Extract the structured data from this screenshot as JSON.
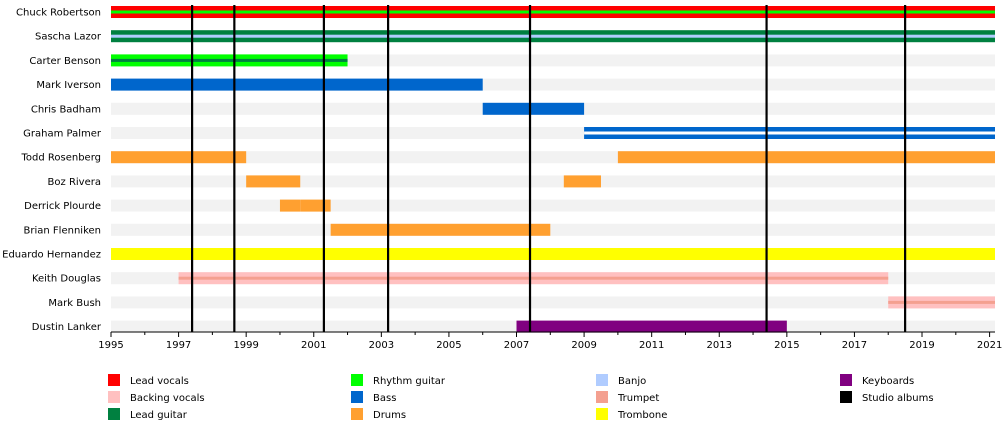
{
  "chart_data": {
    "type": "timeline",
    "title": "",
    "x_range": [
      1995,
      2021.2
    ],
    "ticks": [
      1995,
      1997,
      1999,
      2001,
      2003,
      2005,
      2007,
      2009,
      2011,
      2013,
      2015,
      2017,
      2019,
      2021
    ],
    "studio_albums": [
      1997.4,
      1998.65,
      2001.3,
      2003.2,
      2007.4,
      2014.4,
      2018.5
    ],
    "roles": {
      "lead_vocals": {
        "label": "Lead vocals",
        "color": "#ff0000"
      },
      "backing_vocals": {
        "label": "Backing vocals",
        "color": "#ffc0c0"
      },
      "lead_guitar": {
        "label": "Lead guitar",
        "color": "#008040"
      },
      "rhythm_guitar": {
        "label": "Rhythm guitar",
        "color": "#00ff00"
      },
      "bass": {
        "label": "Bass",
        "color": "#0066cc"
      },
      "drums": {
        "label": "Drums",
        "color": "#ffa030"
      },
      "banjo": {
        "label": "Banjo",
        "color": "#b0ccff"
      },
      "trumpet": {
        "label": "Trumpet",
        "color": "#f4a090"
      },
      "trombone": {
        "label": "Trombone",
        "color": "#ffff00"
      },
      "keyboards": {
        "label": "Keyboards",
        "color": "#800080"
      },
      "studio_albums": {
        "label": "Studio albums",
        "color": "#000000"
      }
    },
    "legend_columns": [
      [
        "lead_vocals",
        "backing_vocals",
        "lead_guitar"
      ],
      [
        "rhythm_guitar",
        "bass",
        "drums"
      ],
      [
        "banjo",
        "trumpet",
        "trombone"
      ],
      [
        "keyboards",
        "studio_albums"
      ]
    ],
    "members": [
      {
        "name": "Chuck Robertson",
        "bars": [
          {
            "start": 1995,
            "end": 2021.2,
            "role": "lead_vocals",
            "stripe": "rhythm_guitar"
          }
        ]
      },
      {
        "name": "Sascha Lazor",
        "bars": [
          {
            "start": 1995,
            "end": 2021.2,
            "role": "lead_guitar",
            "stripe": "banjo"
          }
        ]
      },
      {
        "name": "Carter Benson",
        "bars": [
          {
            "start": 1995,
            "end": 2002,
            "role": "rhythm_guitar",
            "stripe": "lead_guitar"
          }
        ]
      },
      {
        "name": "Mark Iverson",
        "bars": [
          {
            "start": 1995,
            "end": 2006,
            "role": "bass"
          }
        ]
      },
      {
        "name": "Chris Badham",
        "bars": [
          {
            "start": 2006,
            "end": 2009,
            "role": "bass"
          }
        ]
      },
      {
        "name": "Graham Palmer",
        "bars": [
          {
            "start": 2009,
            "end": 2021.2,
            "role": "bass",
            "stripe": "white"
          }
        ]
      },
      {
        "name": "Todd Rosenberg",
        "bars": [
          {
            "start": 1995,
            "end": 1999,
            "role": "drums"
          },
          {
            "start": 2010,
            "end": 2021.2,
            "role": "drums"
          }
        ]
      },
      {
        "name": "Boz Rivera",
        "bars": [
          {
            "start": 1999,
            "end": 2000.6,
            "role": "drums"
          },
          {
            "start": 2008.4,
            "end": 2009.5,
            "role": "drums"
          }
        ]
      },
      {
        "name": "Derrick Plourde",
        "bars": [
          {
            "start": 2000,
            "end": 2000.6,
            "role": "drums"
          },
          {
            "start": 2000.6,
            "end": 2001.5,
            "role": "drums"
          }
        ]
      },
      {
        "name": "Brian Flenniken",
        "bars": [
          {
            "start": 2001.5,
            "end": 2008,
            "role": "drums"
          }
        ]
      },
      {
        "name": "Eduardo Hernandez",
        "bars": [
          {
            "start": 1995,
            "end": 2021.2,
            "role": "trombone"
          }
        ]
      },
      {
        "name": "Keith Douglas",
        "bars": [
          {
            "start": 1997,
            "end": 2018,
            "role": "backing_vocals",
            "stripe": "trumpet"
          }
        ]
      },
      {
        "name": "Mark Bush",
        "bars": [
          {
            "start": 2018,
            "end": 2021.2,
            "role": "backing_vocals",
            "stripe": "trumpet"
          }
        ]
      },
      {
        "name": "Dustin Lanker",
        "bars": [
          {
            "start": 2007,
            "end": 2015,
            "role": "keyboards"
          }
        ]
      }
    ]
  }
}
